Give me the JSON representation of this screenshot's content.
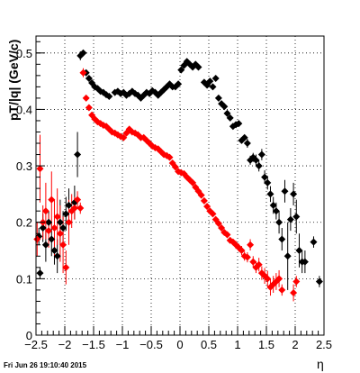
{
  "timestamp": "Fri Jun 26 19:10:40 2015",
  "colors": {
    "series_black": "#000000",
    "series_red": "#ff0000",
    "grid": "#000000",
    "background": "#ffffff"
  },
  "chart_data": {
    "type": "scatter",
    "xlabel": "η",
    "ylabel": "pT/|q| (GeV/c)",
    "xlim": [
      -2.5,
      2.5
    ],
    "ylim": [
      0,
      0.53
    ],
    "grid": true,
    "xticks": [
      "−2.5",
      "−2",
      "−1.5",
      "−1",
      "−0.5",
      "0",
      "0.5",
      "1",
      "1.5",
      "2",
      "2.5"
    ],
    "yticks": [
      "0",
      "0.1",
      "0.2",
      "0.3",
      "0.4",
      "0.5"
    ],
    "xtick_values": [
      -2.5,
      -2,
      -1.5,
      -1,
      -0.5,
      0,
      0.5,
      1,
      1.5,
      2,
      2.5
    ],
    "ytick_values": [
      0,
      0.1,
      0.2,
      0.3,
      0.4,
      0.5
    ],
    "series": [
      {
        "color": "#000000",
        "points": [
          [
            -2.45,
            0.175,
            0.015
          ],
          [
            -2.43,
            0.11,
            0.01
          ],
          [
            -2.38,
            0.19,
            0.025
          ],
          [
            -2.33,
            0.16,
            0.03
          ],
          [
            -2.28,
            0.2,
            0.02
          ],
          [
            -2.23,
            0.17,
            0.03
          ],
          [
            -2.18,
            0.15,
            0.025
          ],
          [
            -2.13,
            0.14,
            0.03
          ],
          [
            -2.08,
            0.2,
            0.04
          ],
          [
            -2.03,
            0.19,
            0.03
          ],
          [
            -1.98,
            0.215,
            0.03
          ],
          [
            -1.93,
            0.23,
            0.03
          ],
          [
            -1.83,
            0.235,
            0.03
          ],
          [
            -1.78,
            0.32,
            0.04
          ],
          [
            -1.73,
            0.495,
            0.008
          ],
          [
            -1.68,
            0.5,
            0.005
          ],
          [
            -1.63,
            0.465,
            0.005
          ],
          [
            -1.58,
            0.455,
            0.004
          ],
          [
            -1.53,
            0.447,
            0.004
          ],
          [
            -1.48,
            0.44,
            0.004
          ],
          [
            -1.43,
            0.437,
            0.004
          ],
          [
            -1.38,
            0.432,
            0.004
          ],
          [
            -1.33,
            0.43,
            0.004
          ],
          [
            -1.28,
            0.426,
            0.004
          ],
          [
            -1.23,
            0.423,
            0.004
          ],
          [
            -1.13,
            0.43,
            0.004
          ],
          [
            -1.08,
            0.432,
            0.004
          ],
          [
            -1.03,
            0.428,
            0.004
          ],
          [
            -0.98,
            0.43,
            0.004
          ],
          [
            -0.93,
            0.425,
            0.004
          ],
          [
            -0.88,
            0.428,
            0.004
          ],
          [
            -0.83,
            0.432,
            0.004
          ],
          [
            -0.78,
            0.428,
            0.004
          ],
          [
            -0.73,
            0.425,
            0.004
          ],
          [
            -0.68,
            0.42,
            0.004
          ],
          [
            -0.63,
            0.425,
            0.004
          ],
          [
            -0.58,
            0.43,
            0.004
          ],
          [
            -0.53,
            0.428,
            0.004
          ],
          [
            -0.48,
            0.433,
            0.004
          ],
          [
            -0.43,
            0.43,
            0.004
          ],
          [
            -0.38,
            0.425,
            0.004
          ],
          [
            -0.33,
            0.43,
            0.004
          ],
          [
            -0.28,
            0.435,
            0.004
          ],
          [
            -0.23,
            0.44,
            0.004
          ],
          [
            -0.18,
            0.445,
            0.004
          ],
          [
            -0.13,
            0.44,
            0.004
          ],
          [
            -0.08,
            0.44,
            0.004
          ],
          [
            -0.03,
            0.445,
            0.004
          ],
          [
            0.02,
            0.47,
            0.004
          ],
          [
            0.07,
            0.478,
            0.004
          ],
          [
            0.12,
            0.485,
            0.004
          ],
          [
            0.17,
            0.48,
            0.004
          ],
          [
            0.22,
            0.475,
            0.004
          ],
          [
            0.27,
            0.48,
            0.004
          ],
          [
            0.32,
            0.475,
            0.004
          ],
          [
            0.42,
            0.448,
            0.004
          ],
          [
            0.47,
            0.443,
            0.004
          ],
          [
            0.52,
            0.45,
            0.004
          ],
          [
            0.57,
            0.44,
            0.004
          ],
          [
            0.62,
            0.455,
            0.004
          ],
          [
            0.67,
            0.42,
            0.004
          ],
          [
            0.72,
            0.41,
            0.004
          ],
          [
            0.77,
            0.405,
            0.004
          ],
          [
            0.82,
            0.393,
            0.004
          ],
          [
            0.87,
            0.385,
            0.004
          ],
          [
            0.92,
            0.37,
            0.006
          ],
          [
            0.97,
            0.373,
            0.006
          ],
          [
            1.02,
            0.375,
            0.006
          ],
          [
            1.07,
            0.345,
            0.006
          ],
          [
            1.12,
            0.35,
            0.006
          ],
          [
            1.17,
            0.34,
            0.008
          ],
          [
            1.22,
            0.31,
            0.008
          ],
          [
            1.27,
            0.315,
            0.008
          ],
          [
            1.32,
            0.31,
            0.01
          ],
          [
            1.37,
            0.3,
            0.01
          ],
          [
            1.42,
            0.32,
            0.01
          ],
          [
            1.47,
            0.28,
            0.012
          ],
          [
            1.52,
            0.27,
            0.012
          ],
          [
            1.57,
            0.25,
            0.014
          ],
          [
            1.62,
            0.23,
            0.015
          ],
          [
            1.67,
            0.22,
            0.015
          ],
          [
            1.72,
            0.2,
            0.02
          ],
          [
            1.77,
            0.17,
            0.02
          ],
          [
            1.82,
            0.255,
            0.02
          ],
          [
            1.87,
            0.14,
            0.06
          ],
          [
            1.92,
            0.205,
            0.02
          ],
          [
            1.97,
            0.25,
            0.02
          ],
          [
            2.02,
            0.21,
            0.03
          ],
          [
            2.07,
            0.15,
            0.03
          ],
          [
            2.12,
            0.13,
            0.02
          ],
          [
            2.17,
            0.13,
            0.02
          ],
          [
            2.32,
            0.165,
            0.01
          ],
          [
            2.42,
            0.095,
            0.01
          ]
        ]
      },
      {
        "color": "#ff0000",
        "points": [
          [
            -2.48,
            0.17,
            0.03
          ],
          [
            -2.43,
            0.295,
            0.06
          ],
          [
            -2.38,
            0.2,
            0.03
          ],
          [
            -2.33,
            0.22,
            0.05
          ],
          [
            -2.28,
            0.185,
            0.03
          ],
          [
            -2.23,
            0.24,
            0.05
          ],
          [
            -2.18,
            0.19,
            0.05
          ],
          [
            -2.13,
            0.21,
            0.05
          ],
          [
            -2.08,
            0.18,
            0.05
          ],
          [
            -2.03,
            0.16,
            0.05
          ],
          [
            -1.98,
            0.12,
            0.03
          ],
          [
            -1.93,
            0.2,
            0.04
          ],
          [
            -1.88,
            0.22,
            0.03
          ],
          [
            -1.83,
            0.225,
            0.02
          ],
          [
            -1.78,
            0.24,
            0.015
          ],
          [
            -1.73,
            0.225,
            0.01
          ],
          [
            -1.68,
            0.465,
            0.008
          ],
          [
            -1.63,
            0.42,
            0.005
          ],
          [
            -1.58,
            0.403,
            0.004
          ],
          [
            -1.53,
            0.39,
            0.004
          ],
          [
            -1.48,
            0.383,
            0.004
          ],
          [
            -1.43,
            0.378,
            0.004
          ],
          [
            -1.38,
            0.375,
            0.004
          ],
          [
            -1.33,
            0.372,
            0.004
          ],
          [
            -1.28,
            0.37,
            0.004
          ],
          [
            -1.23,
            0.365,
            0.004
          ],
          [
            -1.18,
            0.36,
            0.004
          ],
          [
            -1.13,
            0.358,
            0.004
          ],
          [
            -1.08,
            0.355,
            0.004
          ],
          [
            -1.03,
            0.352,
            0.004
          ],
          [
            -0.98,
            0.35,
            0.004
          ],
          [
            -0.93,
            0.358,
            0.004
          ],
          [
            -0.88,
            0.365,
            0.004
          ],
          [
            -0.83,
            0.36,
            0.004
          ],
          [
            -0.78,
            0.358,
            0.004
          ],
          [
            -0.73,
            0.355,
            0.004
          ],
          [
            -0.68,
            0.35,
            0.004
          ],
          [
            -0.63,
            0.35,
            0.004
          ],
          [
            -0.58,
            0.345,
            0.004
          ],
          [
            -0.53,
            0.34,
            0.004
          ],
          [
            -0.48,
            0.335,
            0.004
          ],
          [
            -0.43,
            0.332,
            0.004
          ],
          [
            -0.38,
            0.33,
            0.004
          ],
          [
            -0.33,
            0.325,
            0.004
          ],
          [
            -0.28,
            0.32,
            0.004
          ],
          [
            -0.23,
            0.318,
            0.004
          ],
          [
            -0.18,
            0.315,
            0.004
          ],
          [
            -0.13,
            0.305,
            0.004
          ],
          [
            -0.08,
            0.298,
            0.004
          ],
          [
            -0.03,
            0.29,
            0.004
          ],
          [
            0.02,
            0.288,
            0.004
          ],
          [
            0.07,
            0.286,
            0.004
          ],
          [
            0.12,
            0.28,
            0.004
          ],
          [
            0.17,
            0.275,
            0.004
          ],
          [
            0.22,
            0.27,
            0.004
          ],
          [
            0.27,
            0.262,
            0.004
          ],
          [
            0.32,
            0.255,
            0.004
          ],
          [
            0.37,
            0.248,
            0.004
          ],
          [
            0.42,
            0.238,
            0.004
          ],
          [
            0.47,
            0.228,
            0.004
          ],
          [
            0.52,
            0.22,
            0.004
          ],
          [
            0.57,
            0.215,
            0.004
          ],
          [
            0.62,
            0.205,
            0.004
          ],
          [
            0.67,
            0.198,
            0.004
          ],
          [
            0.72,
            0.19,
            0.005
          ],
          [
            0.77,
            0.182,
            0.005
          ],
          [
            0.82,
            0.178,
            0.005
          ],
          [
            0.87,
            0.168,
            0.006
          ],
          [
            0.92,
            0.165,
            0.006
          ],
          [
            0.97,
            0.16,
            0.007
          ],
          [
            1.02,
            0.155,
            0.007
          ],
          [
            1.07,
            0.15,
            0.008
          ],
          [
            1.12,
            0.14,
            0.008
          ],
          [
            1.17,
            0.138,
            0.009
          ],
          [
            1.22,
            0.16,
            0.01
          ],
          [
            1.27,
            0.13,
            0.01
          ],
          [
            1.32,
            0.12,
            0.01
          ],
          [
            1.37,
            0.125,
            0.012
          ],
          [
            1.42,
            0.11,
            0.012
          ],
          [
            1.47,
            0.105,
            0.014
          ],
          [
            1.52,
            0.1,
            0.014
          ],
          [
            1.57,
            0.085,
            0.015
          ],
          [
            1.62,
            0.09,
            0.015
          ],
          [
            1.67,
            0.095,
            0.015
          ],
          [
            1.72,
            0.1,
            0.015
          ],
          [
            1.77,
            0.08,
            0.01
          ],
          [
            1.97,
            0.075,
            0.015
          ],
          [
            2.02,
            0.095,
            0.01
          ]
        ]
      }
    ]
  }
}
